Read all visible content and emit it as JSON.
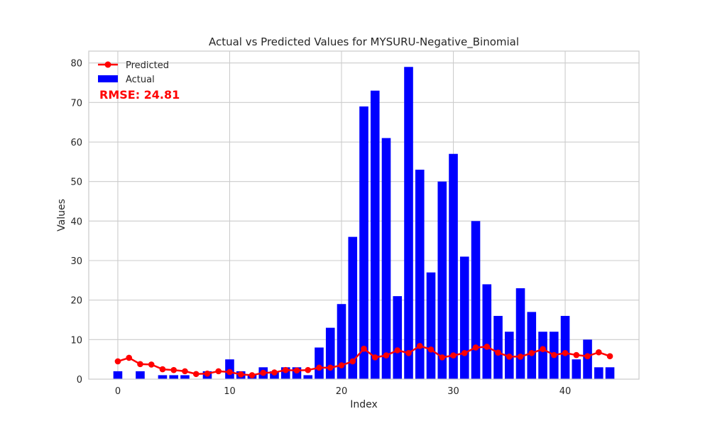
{
  "chart_data": {
    "type": "bar",
    "title": "Actual vs Predicted Values for MYSURU-Negative_Binomial",
    "xlabel": "Index",
    "ylabel": "Values",
    "xlim": [
      -2.6,
      46.6
    ],
    "ylim": [
      0,
      83
    ],
    "xticks": [
      0,
      10,
      20,
      30,
      40
    ],
    "yticks": [
      0,
      10,
      20,
      30,
      40,
      50,
      60,
      70,
      80
    ],
    "grid": true,
    "legend_position": "top-left",
    "annotation": "RMSE: 24.81",
    "series": [
      {
        "name": "Actual",
        "type": "bar",
        "color": "#0000ff",
        "values": [
          2,
          0,
          2,
          0,
          1,
          1,
          1,
          0,
          2,
          0,
          5,
          2,
          1,
          3,
          2,
          3,
          3,
          1,
          8,
          13,
          19,
          36,
          69,
          73,
          61,
          21,
          79,
          53,
          27,
          50,
          57,
          31,
          40,
          24,
          16,
          12,
          23,
          17,
          12,
          12,
          16,
          5,
          10,
          3,
          3
        ]
      },
      {
        "name": "Predicted",
        "type": "line",
        "color": "#ff0000",
        "values": [
          4.5,
          5.4,
          3.8,
          3.7,
          2.5,
          2.3,
          2.0,
          1.3,
          1.4,
          2.0,
          1.8,
          1.2,
          1.0,
          1.6,
          1.7,
          2.3,
          2.2,
          2.3,
          2.9,
          2.9,
          3.5,
          4.5,
          7.7,
          5.5,
          6.0,
          7.3,
          6.6,
          8.4,
          7.5,
          5.5,
          6.0,
          6.6,
          8.0,
          8.2,
          6.7,
          5.7,
          5.7,
          6.6,
          7.6,
          6.1,
          6.6,
          6.1,
          5.8,
          6.8,
          5.8
        ]
      }
    ]
  }
}
